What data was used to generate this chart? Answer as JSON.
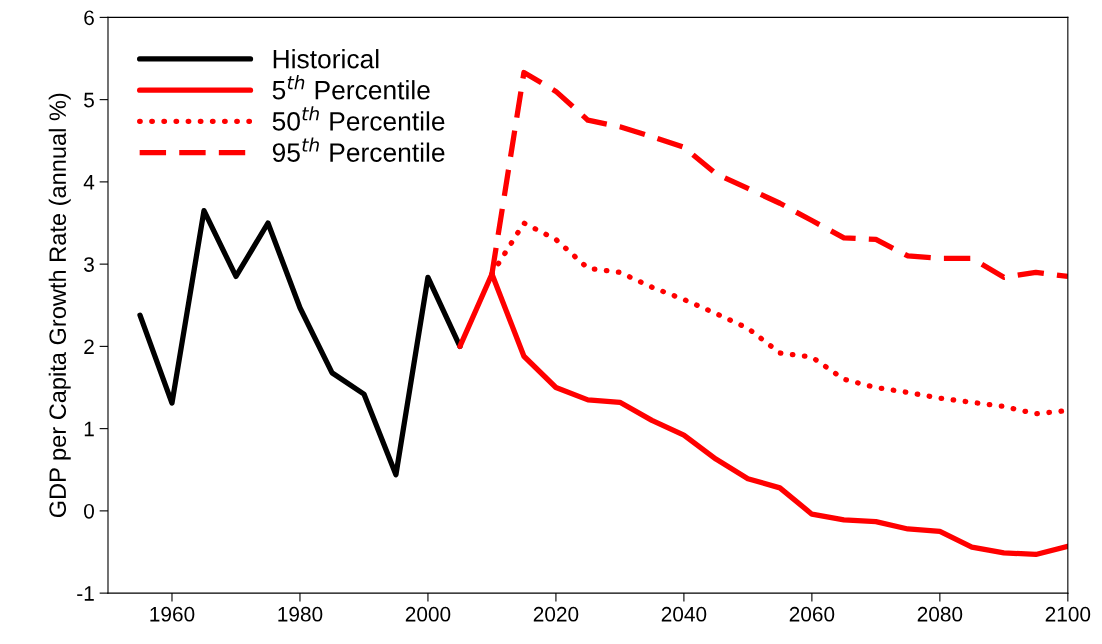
{
  "chart_data": {
    "type": "line",
    "ylabel": "GDP per Capita Growth Rate (annual %)",
    "xlim": [
      1950,
      2100
    ],
    "xticks": [
      1960,
      1980,
      2000,
      2020,
      2040,
      2060,
      2080,
      2100
    ],
    "ylim": [
      -1,
      6
    ],
    "yticks": [
      -1,
      0,
      1,
      2,
      3,
      4,
      5,
      6
    ],
    "grid": false,
    "legend": "top left",
    "marker": "none",
    "series": [
      {
        "name": "Historical",
        "color": "#000000",
        "line_style": "solid",
        "x": [
          1955,
          1960,
          1965,
          1970,
          1975,
          1980,
          1985,
          1990,
          1995,
          2000,
          2005
        ],
        "values": [
          2.38,
          1.31,
          3.65,
          2.85,
          3.5,
          2.47,
          1.68,
          1.42,
          0.44,
          2.84,
          2.0
        ]
      },
      {
        "name": "5$^{th}$ Percentile",
        "color": "#ff0000",
        "line_style": "solid",
        "x": [
          2005,
          2010,
          2015,
          2020,
          2025,
          2030,
          2035,
          2040,
          2045,
          2050,
          2055,
          2060,
          2065,
          2070,
          2075,
          2080,
          2085,
          2090,
          2095,
          2100
        ],
        "values": [
          2.0,
          2.88,
          1.88,
          1.5,
          1.35,
          1.32,
          1.1,
          0.92,
          0.63,
          0.39,
          0.28,
          -0.04,
          -0.11,
          -0.13,
          -0.22,
          -0.25,
          -0.44,
          -0.51,
          -0.53,
          -0.43
        ]
      },
      {
        "name": "50$^{th}$ Percentile",
        "color": "#ff0000",
        "line_style": "dotted",
        "x": [
          2010,
          2015,
          2020,
          2025,
          2030,
          2035,
          2040,
          2045,
          2050,
          2055,
          2060,
          2065,
          2070,
          2075,
          2080,
          2085,
          2090,
          2095,
          2100
        ],
        "values": [
          2.88,
          3.5,
          3.3,
          2.95,
          2.9,
          2.72,
          2.57,
          2.4,
          2.22,
          1.92,
          1.87,
          1.6,
          1.5,
          1.44,
          1.37,
          1.32,
          1.27,
          1.18,
          1.22
        ]
      },
      {
        "name": "95$^{th}$ Percentile",
        "color": "#ff0000",
        "line_style": "dashed",
        "x": [
          2010,
          2015,
          2020,
          2025,
          2030,
          2035,
          2040,
          2045,
          2050,
          2055,
          2060,
          2065,
          2070,
          2075,
          2080,
          2085,
          2090,
          2095,
          2100
        ],
        "values": [
          2.88,
          5.33,
          5.1,
          4.75,
          4.67,
          4.55,
          4.42,
          4.1,
          3.92,
          3.74,
          3.53,
          3.32,
          3.3,
          3.1,
          3.07,
          3.07,
          2.84,
          2.9,
          2.85
        ]
      }
    ]
  }
}
